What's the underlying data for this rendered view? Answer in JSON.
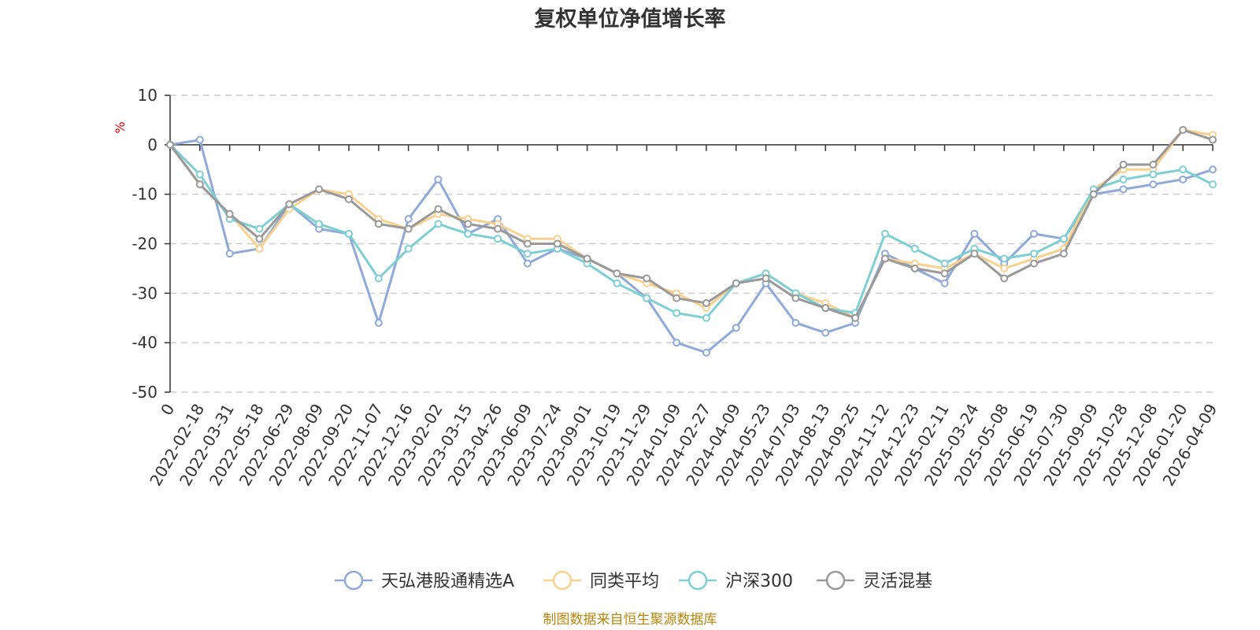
{
  "chart_data": {
    "type": "line",
    "title": "复权单位净值增长率",
    "ylabel": "%",
    "xlabel": "",
    "ylim": [
      -50,
      10
    ],
    "yticks": [
      10,
      0,
      -10,
      -20,
      -30,
      -40,
      -50
    ],
    "categories": [
      "0",
      "2022-02-18",
      "2022-03-31",
      "2022-05-18",
      "2022-06-29",
      "2022-08-09",
      "2022-09-20",
      "2022-11-07",
      "2022-12-16",
      "2023-02-02",
      "2023-03-15",
      "2023-04-26",
      "2023-06-09",
      "2023-07-24",
      "2023-09-01",
      "2023-10-19",
      "2023-11-29",
      "2024-01-09",
      "2024-02-27",
      "2024-04-09",
      "2024-05-23",
      "2024-07-03",
      "2024-08-13",
      "2024-09-25",
      "2024-11-12",
      "2024-12-23",
      "2025-02-11",
      "2025-03-24",
      "2025-05-08",
      "2025-06-19",
      "2025-07-30",
      "2025-09-09",
      "2025-10-28",
      "2025-12-08",
      "2026-01-20",
      "2026-04-09"
    ],
    "series": [
      {
        "name": "天弘港股通精选A",
        "color": "#8fa9d8",
        "values": [
          0,
          1,
          -22,
          -21,
          -12,
          -17,
          -18,
          -36,
          -15,
          -7,
          -18,
          -15,
          -24,
          -21,
          -23,
          -26,
          -31,
          -40,
          -42,
          -37,
          -28,
          -36,
          -38,
          -36,
          -22,
          -25,
          -28,
          -18,
          -24,
          -18,
          -19,
          -10,
          -9,
          -8,
          -7,
          -5
        ]
      },
      {
        "name": "同类平均",
        "color": "#f8d18e",
        "values": [
          0,
          -8,
          -14,
          -21,
          -13,
          -9,
          -10,
          -15,
          -17,
          -14,
          -15,
          -16,
          -19,
          -19,
          -23,
          -26,
          -28,
          -30,
          -33,
          -28,
          -26,
          -30,
          -32,
          -35,
          -23,
          -24,
          -25,
          -22,
          -25,
          -23,
          -21,
          -9,
          -5,
          -5,
          3,
          2
        ]
      },
      {
        "name": "沪深300",
        "color": "#7ecfd3",
        "values": [
          0,
          -6,
          -15,
          -17,
          -12,
          -16,
          -18,
          -27,
          -21,
          -16,
          -18,
          -19,
          -22,
          -21,
          -24,
          -28,
          -31,
          -34,
          -35,
          -28,
          -26,
          -30,
          -33,
          -34,
          -18,
          -21,
          -24,
          -21,
          -23,
          -22,
          -19,
          -9,
          -7,
          -6,
          -5,
          -8
        ]
      },
      {
        "name": "灵活混基",
        "color": "#999999",
        "values": [
          0,
          -8,
          -14,
          -19,
          -12,
          -9,
          -11,
          -16,
          -17,
          -13,
          -16,
          -17,
          -20,
          -20,
          -23,
          -26,
          -27,
          -31,
          -32,
          -28,
          -27,
          -31,
          -33,
          -35,
          -23,
          -25,
          -26,
          -22,
          -27,
          -24,
          -22,
          -10,
          -4,
          -4,
          3,
          1
        ]
      }
    ],
    "legend_position": "bottom-center",
    "grid": true
  },
  "source_text": "制图数据来自恒生聚源数据库"
}
